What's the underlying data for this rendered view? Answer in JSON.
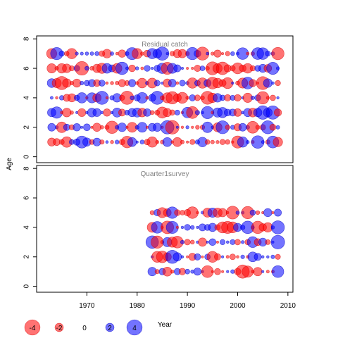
{
  "chart_data": {
    "type": "scatter",
    "xlabel": "Year",
    "ylabel": "Age",
    "xlim": [
      1960,
      2011
    ],
    "ylim": [
      -0.4,
      8.2
    ],
    "x_ticks": [
      1970,
      1980,
      1990,
      2000,
      2010
    ],
    "y_ticks": [
      0,
      2,
      4,
      6,
      8
    ],
    "colors": {
      "positive": "#0000ff",
      "negative": "#ff0000"
    },
    "panels": [
      {
        "title": "Residual catch",
        "years": [
          1963,
          2008
        ],
        "ages": [
          1,
          2,
          3,
          4,
          5,
          6,
          7
        ]
      },
      {
        "title": "Quarter1survey",
        "years": [
          1983,
          2008
        ],
        "ages": [
          1,
          2,
          3,
          4,
          5
        ]
      }
    ],
    "legend": {
      "values": [
        -4,
        -2,
        0,
        2,
        4
      ],
      "labels": [
        "-4",
        "-2",
        "0",
        "2",
        "4"
      ]
    }
  }
}
